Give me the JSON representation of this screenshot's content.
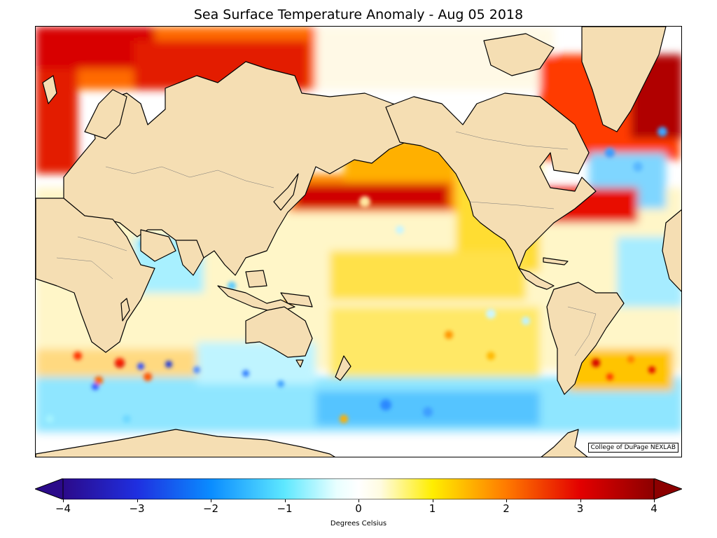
{
  "title": "Sea Surface Temperature Anomaly - Aug 05 2018",
  "credit": "College of DuPage NEXLAB",
  "colorbar": {
    "label": "Degrees Celsius",
    "min": -4,
    "max": 4,
    "ticks": [
      "−4",
      "−3",
      "−2",
      "−1",
      "0",
      "1",
      "2",
      "3",
      "4"
    ],
    "tick_values": [
      -4,
      -3,
      -2,
      -1,
      0,
      1,
      2,
      3,
      4
    ],
    "extend": "both",
    "stops": [
      {
        "v": -4,
        "c": "#2b0a8a"
      },
      {
        "v": -3,
        "c": "#1f2fe0"
      },
      {
        "v": -2,
        "c": "#0a8cff"
      },
      {
        "v": -1,
        "c": "#5ee8ff"
      },
      {
        "v": -0.3,
        "c": "#e8ffff"
      },
      {
        "v": 0,
        "c": "#ffffff"
      },
      {
        "v": 0.3,
        "c": "#fffbe0"
      },
      {
        "v": 1,
        "c": "#ffee00"
      },
      {
        "v": 2,
        "c": "#ff7a00"
      },
      {
        "v": 3,
        "c": "#e30000"
      },
      {
        "v": 4,
        "c": "#8c0000"
      }
    ]
  },
  "colors": {
    "land": "#f5deb3",
    "coast": "#000000",
    "warm": "#e31a00",
    "hot": "#a80000",
    "orange": "#ff9a00",
    "yellow": "#ffe45c",
    "pale_yellow": "#fff5b0",
    "cool": "#9ff2ff",
    "cold": "#3aa0ff"
  }
}
